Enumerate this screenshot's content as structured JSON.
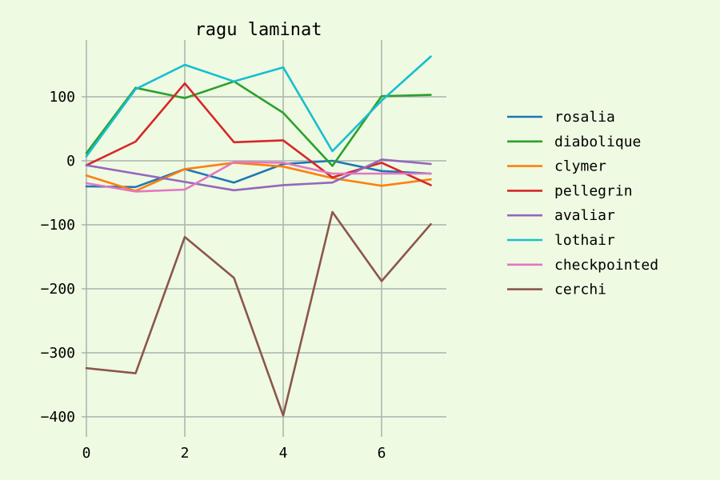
{
  "chart_data": {
    "type": "line",
    "title": "ragu laminat",
    "xlabel": "",
    "ylabel": "",
    "x": [
      0,
      1,
      2,
      3,
      4,
      5,
      6,
      7
    ],
    "xlim": [
      0,
      7.4
    ],
    "ylim": [
      -425,
      190
    ],
    "xticks": [
      0,
      2,
      4,
      6
    ],
    "yticks": [
      100,
      0,
      -100,
      -200,
      -300,
      -400
    ],
    "xtick_labels": [
      "0",
      "2",
      "4",
      "6"
    ],
    "ytick_labels": [
      "100",
      "0",
      "−100",
      "−200",
      "−300",
      "−400"
    ],
    "grid": true,
    "legend_position": "right",
    "series": [
      {
        "name": "rosalia",
        "color": "#1f77b4",
        "values": [
          -40,
          -41,
          -13,
          -34,
          -5,
          0,
          -16,
          -20
        ]
      },
      {
        "name": "diabolique",
        "color": "#2ca02c",
        "values": [
          12,
          114,
          98,
          124,
          75,
          -8,
          101,
          103
        ]
      },
      {
        "name": "clymer",
        "color": "#ff7f0e",
        "values": [
          -23,
          -47,
          -13,
          -3,
          -9,
          -27,
          -39,
          -29
        ]
      },
      {
        "name": "pellegrin",
        "color": "#d62728",
        "values": [
          -7,
          30,
          121,
          29,
          32,
          -26,
          -3,
          -38
        ]
      },
      {
        "name": "avaliar",
        "color": "#9467bd",
        "values": [
          -7,
          -20,
          -33,
          -46,
          -38,
          -34,
          2,
          -5
        ]
      },
      {
        "name": "lothair",
        "color": "#17becf",
        "values": [
          7,
          112,
          150,
          124,
          146,
          15,
          94,
          163
        ]
      },
      {
        "name": "checkpointed",
        "color": "#e377c2",
        "values": [
          -35,
          -48,
          -45,
          -2,
          -3,
          -20,
          -20,
          -20
        ]
      },
      {
        "name": "cerchi",
        "color": "#8c564b",
        "values": [
          -324,
          -332,
          -119,
          -183,
          -398,
          -80,
          -188,
          -99
        ]
      }
    ]
  }
}
